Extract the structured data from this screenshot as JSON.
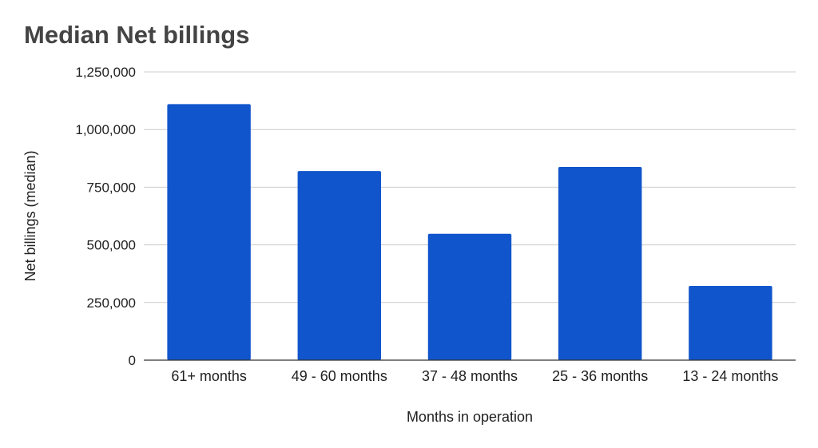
{
  "chart_data": {
    "type": "bar",
    "title": "Median Net billings",
    "xlabel": "Months in operation",
    "ylabel": "Net billings (median)",
    "categories": [
      "61+ months",
      "49 - 60 months",
      "37 - 48 months",
      "25 - 36 months",
      "13 - 24 months"
    ],
    "values": [
      1110000,
      820000,
      548000,
      838000,
      322000
    ],
    "ylim": [
      0,
      1250000
    ],
    "yticks": [
      0,
      250000,
      500000,
      750000,
      1000000,
      1250000
    ],
    "ytick_labels": [
      "0",
      "250,000",
      "500,000",
      "750,000",
      "1,000,000",
      "1,250,000"
    ],
    "grid": true,
    "legend": "none",
    "bar_color": "#1155cc"
  }
}
